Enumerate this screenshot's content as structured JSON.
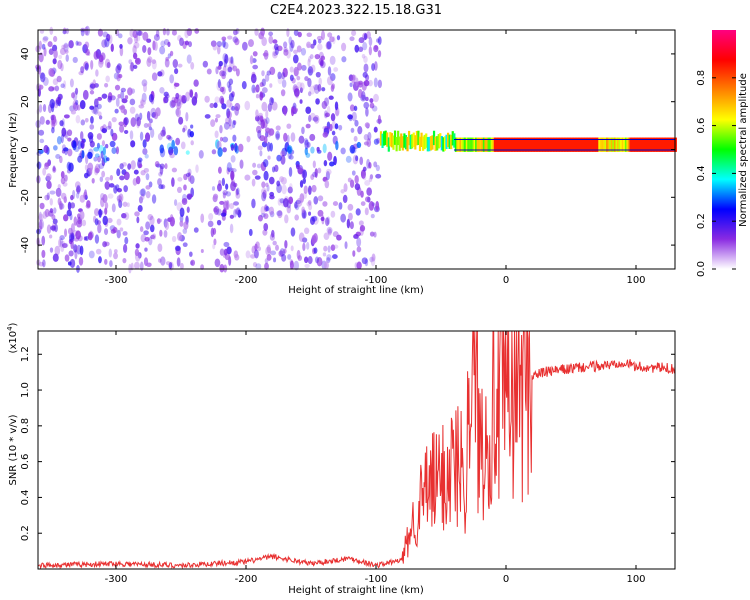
{
  "figure_title": "C2E4.2023.322.15.18.G31",
  "chart_data": [
    {
      "type": "heatmap",
      "panel": "spectrogram",
      "xlabel": "Height of straight line (km)",
      "ylabel": "Frequency (Hz)",
      "xlim": [
        -360,
        130
      ],
      "ylim": [
        -50,
        50
      ],
      "x_ticks": [
        -300,
        -200,
        -100,
        0,
        100
      ],
      "y_ticks": [
        -40,
        -20,
        0,
        20,
        40
      ],
      "colorbar": {
        "label": "Normalized spectral amplitude",
        "range": [
          0.0,
          1.0
        ],
        "ticks": [
          0.0,
          0.2,
          0.4,
          0.6,
          0.8
        ],
        "colormap": [
          "#ffffff",
          "#8a2be2",
          "#0000ff",
          "#00ffff",
          "#00ff00",
          "#ffff00",
          "#ff8000",
          "#ff0000",
          "#ff0080"
        ]
      },
      "features": [
        {
          "x_range": [
            -360,
            -97
          ],
          "freq_center": 0,
          "freq_spread": 50,
          "amplitude": 0.15
        },
        {
          "x_range": [
            -97,
            130
          ],
          "freq_center": 2,
          "freq_spread": 3,
          "amplitude": 0.85
        }
      ]
    },
    {
      "type": "line",
      "panel": "snr",
      "xlabel": "Height of straight line (km)",
      "ylabel": "SNR (10 * v/v)",
      "y_multiplier": "(x10",
      "y_multiplier_exp": "4",
      "y_multiplier_close": ")",
      "xlim": [
        -360,
        130
      ],
      "ylim": [
        0,
        1.33
      ],
      "x_ticks": [
        -300,
        -200,
        -100,
        0,
        100
      ],
      "y_ticks": [
        0.2,
        0.4,
        0.6,
        0.8,
        1.0,
        1.2
      ],
      "line_color": "#e83030",
      "series": [
        {
          "x": [
            -360,
            -300,
            -250,
            -200,
            -180,
            -150,
            -120,
            -100,
            -80,
            -70,
            -60,
            -50,
            -40,
            -30,
            -28,
            -20,
            -10,
            0,
            10,
            20,
            30,
            50,
            80,
            90,
            100,
            130
          ],
          "y": [
            0.02,
            0.03,
            0.02,
            0.04,
            0.07,
            0.03,
            0.06,
            0.02,
            0.05,
            0.3,
            0.45,
            0.5,
            0.6,
            0.55,
            1.33,
            0.7,
            0.9,
            0.95,
            1.05,
            1.08,
            1.1,
            1.12,
            1.14,
            1.16,
            1.13,
            1.12
          ]
        }
      ]
    }
  ]
}
